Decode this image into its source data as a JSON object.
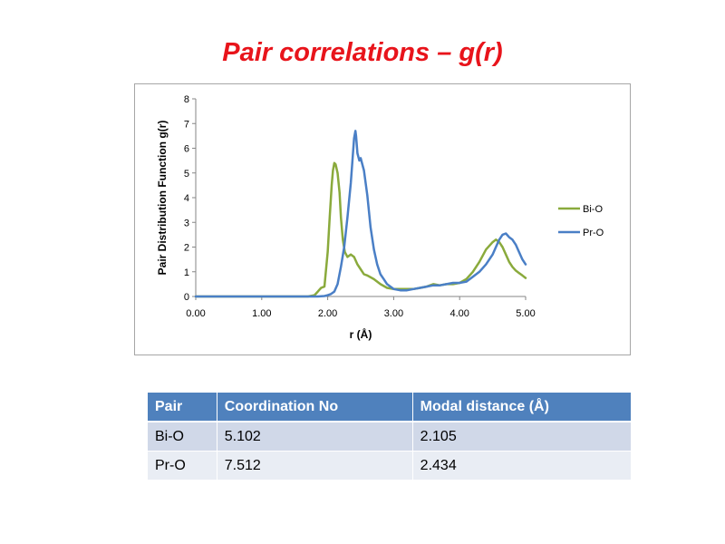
{
  "slide": {
    "title": "Pair correlations – g(r)"
  },
  "colors": {
    "bio": "#8aaa3c",
    "pro": "#4a7fc6",
    "title": "#e8141b",
    "table_header": "#4f81bd"
  },
  "chart_data": {
    "type": "line",
    "title": "",
    "xlabel": "r (Å)",
    "ylabel": "Pair Distribution Function g(r)",
    "xlim": [
      0,
      5
    ],
    "ylim": [
      0,
      8
    ],
    "x_ticks": [
      "0.00",
      "1.00",
      "2.00",
      "3.00",
      "4.00",
      "5.00"
    ],
    "y_ticks": [
      "0",
      "1",
      "2",
      "3",
      "4",
      "5",
      "6",
      "7",
      "8"
    ],
    "legend_position": "right",
    "series": [
      {
        "name": "Bi-O",
        "color": "#8aaa3c",
        "x": [
          0,
          1.7,
          1.8,
          1.85,
          1.9,
          1.95,
          2.0,
          2.03,
          2.06,
          2.08,
          2.1,
          2.12,
          2.15,
          2.18,
          2.2,
          2.23,
          2.26,
          2.3,
          2.35,
          2.4,
          2.45,
          2.5,
          2.55,
          2.6,
          2.7,
          2.8,
          2.9,
          3.0,
          3.1,
          3.2,
          3.3,
          3.4,
          3.5,
          3.6,
          3.7,
          3.8,
          3.9,
          4.0,
          4.1,
          4.2,
          4.3,
          4.4,
          4.5,
          4.55,
          4.6,
          4.65,
          4.7,
          4.75,
          4.8,
          4.85,
          4.9,
          4.95,
          5.0
        ],
        "y": [
          0,
          0,
          0.05,
          0.2,
          0.35,
          0.4,
          1.8,
          3.2,
          4.5,
          5.1,
          5.4,
          5.35,
          5.0,
          4.2,
          3.2,
          2.3,
          1.8,
          1.6,
          1.7,
          1.6,
          1.3,
          1.1,
          0.9,
          0.85,
          0.7,
          0.5,
          0.35,
          0.3,
          0.3,
          0.3,
          0.3,
          0.35,
          0.4,
          0.5,
          0.45,
          0.5,
          0.5,
          0.55,
          0.7,
          1.0,
          1.4,
          1.9,
          2.2,
          2.3,
          2.2,
          2.0,
          1.7,
          1.4,
          1.2,
          1.05,
          0.95,
          0.85,
          0.75
        ]
      },
      {
        "name": "Pr-O",
        "color": "#4a7fc6",
        "x": [
          0,
          1.85,
          1.95,
          2.0,
          2.05,
          2.1,
          2.15,
          2.2,
          2.25,
          2.3,
          2.35,
          2.38,
          2.4,
          2.42,
          2.43,
          2.45,
          2.48,
          2.5,
          2.55,
          2.6,
          2.65,
          2.7,
          2.75,
          2.8,
          2.85,
          2.9,
          3.0,
          3.1,
          3.2,
          3.3,
          3.4,
          3.5,
          3.6,
          3.7,
          3.8,
          3.9,
          4.0,
          4.1,
          4.2,
          4.3,
          4.4,
          4.5,
          4.55,
          4.6,
          4.65,
          4.7,
          4.75,
          4.8,
          4.85,
          4.9,
          4.95,
          5.0
        ],
        "y": [
          0,
          0,
          0.02,
          0.05,
          0.1,
          0.2,
          0.5,
          1.2,
          2.0,
          3.2,
          4.6,
          5.7,
          6.4,
          6.7,
          6.5,
          5.8,
          5.5,
          5.6,
          5.1,
          4.1,
          2.8,
          1.9,
          1.3,
          0.9,
          0.7,
          0.5,
          0.3,
          0.25,
          0.25,
          0.3,
          0.35,
          0.4,
          0.45,
          0.45,
          0.5,
          0.55,
          0.55,
          0.6,
          0.8,
          1.0,
          1.3,
          1.7,
          2.0,
          2.3,
          2.5,
          2.55,
          2.4,
          2.3,
          2.1,
          1.8,
          1.5,
          1.3
        ]
      }
    ]
  },
  "table": {
    "headers": [
      "Pair",
      "Coordination No",
      "Modal distance (Å)"
    ],
    "rows": [
      [
        "Bi-O",
        "5.102",
        "2.105"
      ],
      [
        "Pr-O",
        "7.512",
        "2.434"
      ]
    ]
  }
}
